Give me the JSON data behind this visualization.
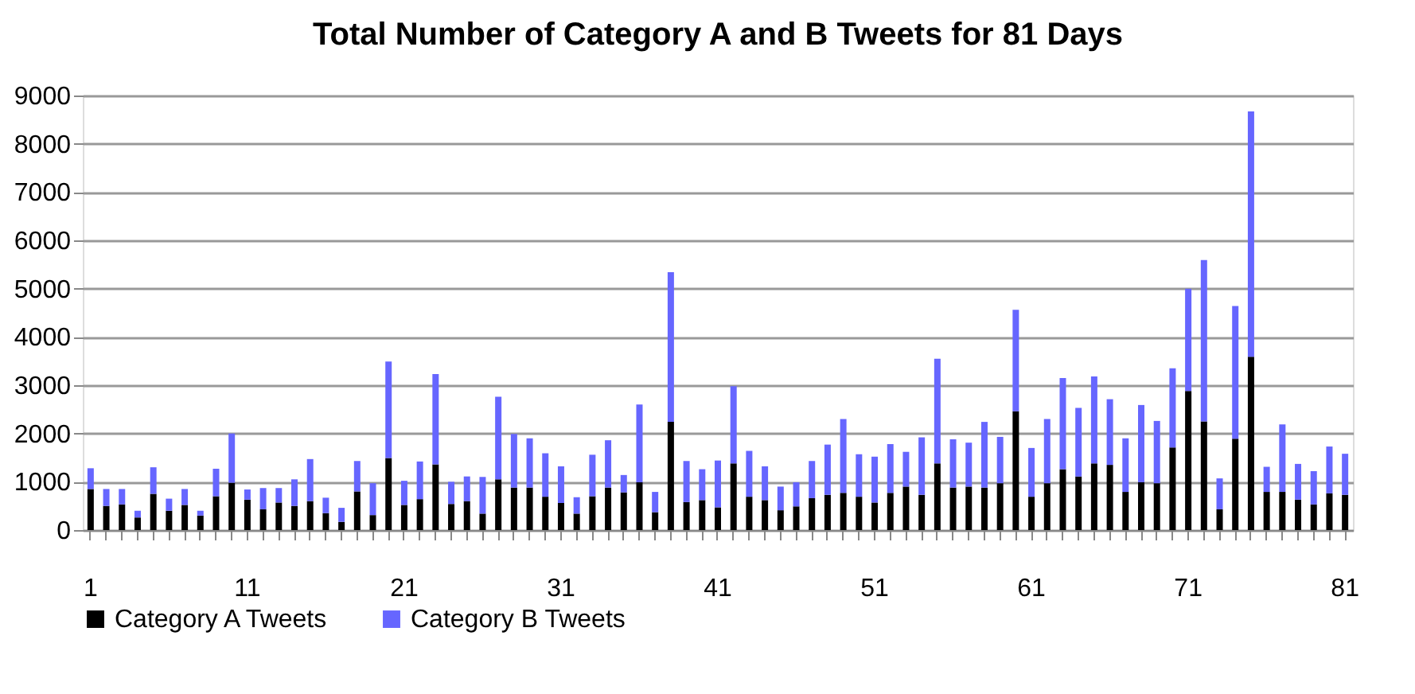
{
  "chart_data": {
    "type": "bar",
    "title": "Total Number of Category A  and B Tweets for 81 Days",
    "stacked": true,
    "categories": [
      "1",
      null,
      null,
      null,
      null,
      null,
      null,
      null,
      null,
      null,
      "11",
      null,
      null,
      null,
      null,
      null,
      null,
      null,
      null,
      null,
      "21",
      null,
      null,
      null,
      null,
      null,
      null,
      null,
      null,
      null,
      "31",
      null,
      null,
      null,
      null,
      null,
      null,
      null,
      null,
      null,
      "41",
      null,
      null,
      null,
      null,
      null,
      null,
      null,
      null,
      null,
      "51",
      null,
      null,
      null,
      null,
      null,
      null,
      null,
      null,
      null,
      "61",
      null,
      null,
      null,
      null,
      null,
      null,
      null,
      null,
      null,
      "71",
      null,
      null,
      null,
      null,
      null,
      null,
      null,
      null,
      null,
      "81"
    ],
    "series": [
      {
        "name": "Category A Tweets",
        "color": "#000000",
        "values": [
          850,
          500,
          530,
          260,
          750,
          400,
          520,
          300,
          700,
          980,
          630,
          430,
          570,
          500,
          600,
          350,
          170,
          800,
          310,
          1490,
          520,
          640,
          1360,
          540,
          600,
          340,
          1050,
          880,
          880,
          690,
          560,
          340,
          700,
          880,
          780,
          990,
          370,
          2240,
          580,
          620,
          470,
          1380,
          690,
          620,
          410,
          490,
          660,
          730,
          770,
          690,
          570,
          770,
          900,
          730,
          1380,
          880,
          900,
          880,
          970,
          2460,
          690,
          970,
          1260,
          1110,
          1380,
          1350,
          790,
          990,
          970,
          1710,
          2880,
          2250,
          430,
          1890,
          3590,
          790,
          790,
          630,
          530,
          760,
          730
        ]
      },
      {
        "name": "Category B Tweets",
        "color": "#6666ff",
        "values": [
          430,
          350,
          320,
          140,
          550,
          250,
          330,
          100,
          570,
          1020,
          210,
          440,
          300,
          550,
          870,
          320,
          290,
          630,
          660,
          2000,
          500,
          780,
          1870,
          460,
          510,
          760,
          1710,
          1110,
          1020,
          900,
          760,
          340,
          860,
          980,
          360,
          1610,
          420,
          3100,
          850,
          640,
          970,
          1600,
          950,
          700,
          490,
          500,
          770,
          1040,
          1530,
          880,
          950,
          1010,
          720,
          1190,
          2170,
          1000,
          910,
          1360,
          960,
          2100,
          1010,
          1330,
          1890,
          1420,
          1800,
          1360,
          1110,
          1600,
          1290,
          1640,
          2120,
          3340,
          640,
          2750,
          5080,
          520,
          1400,
          740,
          690,
          970,
          850
        ]
      }
    ],
    "ylim": [
      0,
      9000
    ],
    "yticks": [
      0,
      1000,
      2000,
      3000,
      4000,
      5000,
      6000,
      7000,
      8000,
      9000
    ],
    "grid": "y",
    "legend": "bottom"
  }
}
